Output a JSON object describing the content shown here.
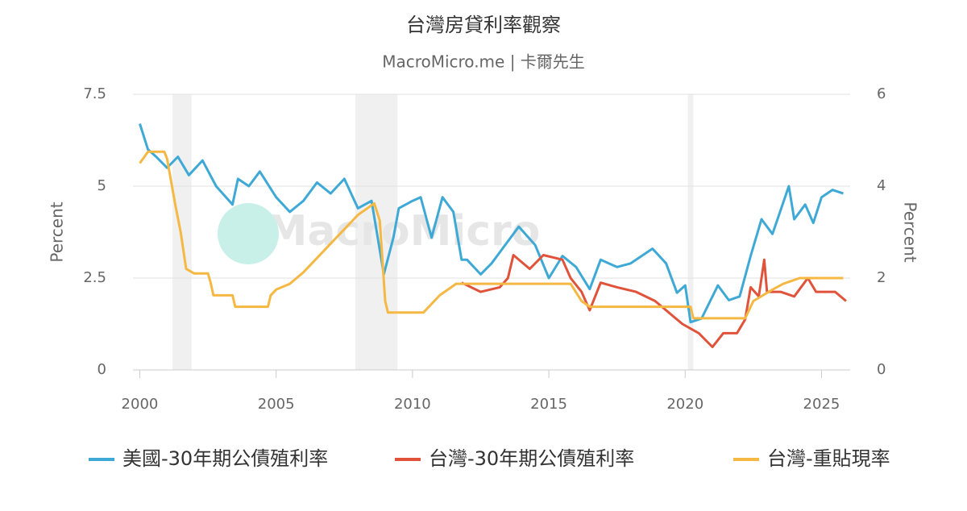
{
  "chart_data": {
    "type": "line",
    "title": "台灣房貸利率觀察",
    "subtitle": "MacroMicro.me | 卡爾先生",
    "watermark": "MacroMicro",
    "y_label": "Percent",
    "y2_label": "Percent",
    "xlim": [
      1999.75,
      2026.05
    ],
    "xticks": [
      2000,
      2005,
      2010,
      2015,
      2020,
      2025
    ],
    "ylim": [
      0,
      7.5
    ],
    "yticks": [
      0,
      2.5,
      5,
      7.5
    ],
    "y2lim": [
      0,
      6
    ],
    "y2ticks": [
      0,
      2,
      4,
      6
    ],
    "grid": true,
    "shaded": [
      [
        2001.2,
        2001.9
      ],
      [
        2007.9,
        2009.45
      ],
      [
        2020.1,
        2020.3
      ]
    ],
    "series": [
      {
        "name": "美國-30年期公債殖利率",
        "color": "#3fa9d6",
        "x": [
          2000.0,
          2000.3,
          2000.6,
          2001.0,
          2001.4,
          2001.8,
          2002.3,
          2002.8,
          2003.4,
          2003.6,
          2004.0,
          2004.4,
          2005.0,
          2005.5,
          2006.0,
          2006.5,
          2007.0,
          2007.5,
          2008.0,
          2008.5,
          2008.95,
          2009.3,
          2009.5,
          2010.0,
          2010.3,
          2010.7,
          2011.1,
          2011.5,
          2011.8,
          2012.0,
          2012.5,
          2012.9,
          2013.5,
          2013.9,
          2014.5,
          2015.0,
          2015.5,
          2016.0,
          2016.5,
          2016.9,
          2017.5,
          2018.0,
          2018.8,
          2019.3,
          2019.7,
          2020.0,
          2020.2,
          2020.6,
          2021.2,
          2021.6,
          2022.0,
          2022.4,
          2022.8,
          2023.2,
          2023.8,
          2024.0,
          2024.4,
          2024.7,
          2025.0,
          2025.4,
          2025.8
        ],
        "values": [
          6.7,
          6.0,
          5.8,
          5.5,
          5.8,
          5.3,
          5.7,
          5.0,
          4.5,
          5.2,
          5.0,
          5.4,
          4.7,
          4.3,
          4.6,
          5.1,
          4.8,
          5.2,
          4.4,
          4.6,
          2.6,
          3.6,
          4.4,
          4.6,
          4.7,
          3.6,
          4.7,
          4.3,
          3.0,
          3.0,
          2.6,
          2.9,
          3.5,
          3.9,
          3.4,
          2.5,
          3.1,
          2.8,
          2.2,
          3.0,
          2.8,
          2.9,
          3.3,
          2.9,
          2.1,
          2.3,
          1.3,
          1.4,
          2.3,
          1.9,
          2.0,
          3.1,
          4.1,
          3.7,
          5.0,
          4.1,
          4.5,
          4.0,
          4.7,
          4.9,
          4.8
        ]
      },
      {
        "name": "台灣-30年期公債殖利率",
        "color": "#e0533a",
        "axis": "y2",
        "x": [
          2011.8,
          2012.5,
          2013.2,
          2013.5,
          2013.7,
          2014.3,
          2014.8,
          2015.5,
          2015.8,
          2016.2,
          2016.5,
          2016.9,
          2017.5,
          2018.2,
          2018.9,
          2019.5,
          2019.9,
          2020.5,
          2021.0,
          2021.4,
          2021.9,
          2022.2,
          2022.4,
          2022.7,
          2022.9,
          2023.0,
          2023.5,
          2024.0,
          2024.5,
          2024.8,
          2025.5,
          2025.9
        ],
        "values": [
          1.9,
          1.7,
          1.8,
          2.0,
          2.5,
          2.2,
          2.5,
          2.4,
          2.0,
          1.7,
          1.3,
          1.9,
          1.8,
          1.7,
          1.5,
          1.2,
          1.0,
          0.8,
          0.5,
          0.8,
          0.8,
          1.1,
          1.8,
          1.6,
          2.4,
          1.7,
          1.7,
          1.6,
          2.0,
          1.7,
          1.7,
          1.5
        ]
      },
      {
        "name": "台灣-重貼現率",
        "color": "#f4b843",
        "axis": "y2",
        "x": [
          2000.0,
          2000.3,
          2000.9,
          2001.0,
          2001.3,
          2001.5,
          2001.7,
          2002.0,
          2002.5,
          2002.6,
          2002.7,
          2003.4,
          2003.5,
          2004.7,
          2004.8,
          2005.0,
          2005.5,
          2006.0,
          2007.0,
          2008.0,
          2008.6,
          2008.8,
          2009.0,
          2009.1,
          2010.4,
          2010.6,
          2011.0,
          2011.6,
          2015.8,
          2016.2,
          2016.5,
          2020.2,
          2020.3,
          2022.2,
          2022.5,
          2023.2,
          2023.6,
          2024.2,
          2025.8
        ],
        "values": [
          4.5,
          4.75,
          4.75,
          4.6,
          3.6,
          3.0,
          2.2,
          2.1,
          2.1,
          1.9,
          1.625,
          1.625,
          1.375,
          1.375,
          1.625,
          1.75,
          1.875,
          2.125,
          2.75,
          3.375,
          3.625,
          3.25,
          1.5,
          1.25,
          1.25,
          1.375,
          1.625,
          1.875,
          1.875,
          1.5,
          1.375,
          1.375,
          1.125,
          1.125,
          1.5,
          1.75,
          1.875,
          2.0,
          2.0
        ]
      }
    ]
  }
}
